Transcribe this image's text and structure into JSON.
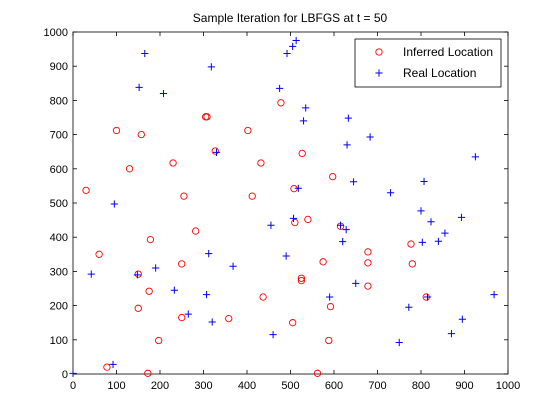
{
  "chart_data": {
    "type": "scatter",
    "title": "Sample Iteration for LBFGS at t =  50",
    "xlabel": "",
    "ylabel": "",
    "xlim": [
      0,
      1000
    ],
    "ylim": [
      0,
      1000
    ],
    "xticks": [
      "0",
      "100",
      "200",
      "300",
      "400",
      "500",
      "600",
      "700",
      "800",
      "900",
      "1000"
    ],
    "yticks": [
      "0",
      "100",
      "200",
      "300",
      "400",
      "500",
      "600",
      "700",
      "800",
      "900",
      "1000"
    ],
    "grid": false,
    "legend_position": "top-right",
    "series": [
      {
        "name": "Inferred Location",
        "marker": "circle",
        "color": "#ff0000",
        "points": [
          [
            30,
            537
          ],
          [
            60,
            350
          ],
          [
            78,
            20
          ],
          [
            100,
            712
          ],
          [
            130,
            600
          ],
          [
            150,
            192
          ],
          [
            150,
            292
          ],
          [
            157,
            700
          ],
          [
            172,
            2
          ],
          [
            175,
            242
          ],
          [
            178,
            393
          ],
          [
            197,
            98
          ],
          [
            230,
            617
          ],
          [
            250,
            165
          ],
          [
            250,
            322
          ],
          [
            255,
            520
          ],
          [
            282,
            418
          ],
          [
            305,
            752
          ],
          [
            308,
            752
          ],
          [
            327,
            652
          ],
          [
            358,
            162
          ],
          [
            402,
            712
          ],
          [
            412,
            520
          ],
          [
            432,
            617
          ],
          [
            437,
            225
          ],
          [
            478,
            793
          ],
          [
            505,
            150
          ],
          [
            508,
            542
          ],
          [
            510,
            443
          ],
          [
            525,
            280
          ],
          [
            525,
            273
          ],
          [
            527,
            645
          ],
          [
            540,
            452
          ],
          [
            562,
            2
          ],
          [
            575,
            328
          ],
          [
            588,
            98
          ],
          [
            592,
            197
          ],
          [
            597,
            577
          ],
          [
            615,
            432
          ],
          [
            678,
            357
          ],
          [
            678,
            325
          ],
          [
            678,
            257
          ],
          [
            777,
            380
          ],
          [
            780,
            322
          ],
          [
            812,
            225
          ]
        ]
      },
      {
        "name": "Real Location",
        "marker": "plus",
        "color": "#0000ff",
        "points": [
          [
            0,
            2
          ],
          [
            42,
            292
          ],
          [
            92,
            28
          ],
          [
            95,
            497
          ],
          [
            148,
            290
          ],
          [
            152,
            838
          ],
          [
            165,
            937
          ],
          [
            190,
            310
          ],
          [
            208,
            820
          ],
          [
            233,
            245
          ],
          [
            265,
            175
          ],
          [
            307,
            232
          ],
          [
            312,
            352
          ],
          [
            318,
            898
          ],
          [
            320,
            152
          ],
          [
            330,
            648
          ],
          [
            368,
            315
          ],
          [
            455,
            435
          ],
          [
            460,
            115
          ],
          [
            475,
            835
          ],
          [
            490,
            345
          ],
          [
            492,
            937
          ],
          [
            505,
            958
          ],
          [
            507,
            455
          ],
          [
            513,
            975
          ],
          [
            518,
            543
          ],
          [
            530,
            740
          ],
          [
            535,
            778
          ],
          [
            590,
            225
          ],
          [
            615,
            435
          ],
          [
            620,
            387
          ],
          [
            628,
            422
          ],
          [
            630,
            670
          ],
          [
            633,
            748
          ],
          [
            645,
            562
          ],
          [
            650,
            265
          ],
          [
            683,
            693
          ],
          [
            730,
            530
          ],
          [
            750,
            92
          ],
          [
            772,
            195
          ],
          [
            800,
            477
          ],
          [
            803,
            385
          ],
          [
            807,
            563
          ],
          [
            815,
            225
          ],
          [
            823,
            445
          ],
          [
            840,
            388
          ],
          [
            855,
            412
          ],
          [
            870,
            118
          ],
          [
            893,
            458
          ],
          [
            895,
            160
          ],
          [
            925,
            635
          ],
          [
            968,
            232
          ]
        ]
      }
    ]
  }
}
